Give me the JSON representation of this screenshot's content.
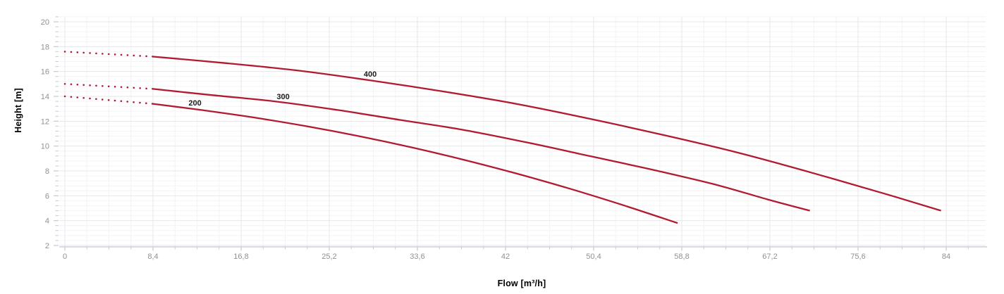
{
  "chart_data": {
    "type": "line",
    "title": "",
    "xlabel": "Flow [m³/h]",
    "ylabel": "Height [m]",
    "x_axis": {
      "ticks": [
        {
          "value": 0,
          "label": "0"
        },
        {
          "value": 8.4,
          "label": "8,4"
        },
        {
          "value": 16.8,
          "label": "16,8"
        },
        {
          "value": 25.2,
          "label": "25,2"
        },
        {
          "value": 33.6,
          "label": "33,6"
        },
        {
          "value": 42,
          "label": "42"
        },
        {
          "value": 50.4,
          "label": "50,4"
        },
        {
          "value": 58.8,
          "label": "58,8"
        },
        {
          "value": 67.2,
          "label": "67,2"
        },
        {
          "value": 75.6,
          "label": "75,6"
        },
        {
          "value": 84,
          "label": "84"
        }
      ],
      "minor_step": 2.1,
      "shown_range": [
        0,
        86.1
      ]
    },
    "y_axis": {
      "ticks": [
        {
          "value": 2,
          "label": "2"
        },
        {
          "value": 4,
          "label": "4"
        },
        {
          "value": 6,
          "label": "6"
        },
        {
          "value": 8,
          "label": "8"
        },
        {
          "value": 10,
          "label": "10"
        },
        {
          "value": 12,
          "label": "12"
        },
        {
          "value": 14,
          "label": "14"
        },
        {
          "value": 16,
          "label": "16"
        },
        {
          "value": 18,
          "label": "18"
        },
        {
          "value": 20,
          "label": "20"
        }
      ],
      "minor_step": 0.4,
      "shown_range": [
        2,
        20.4
      ]
    },
    "series": [
      {
        "name": "200",
        "label": {
          "text": "200",
          "x": 12.4,
          "y": 13.5
        },
        "dotted_points": [
          [
            0,
            14.0
          ],
          [
            8.4,
            13.4
          ]
        ],
        "points": [
          [
            8.4,
            13.4
          ],
          [
            13,
            12.9
          ],
          [
            18,
            12.3
          ],
          [
            23,
            11.6
          ],
          [
            28,
            10.8
          ],
          [
            33,
            9.9
          ],
          [
            38,
            8.9
          ],
          [
            43,
            7.8
          ],
          [
            48,
            6.6
          ],
          [
            53,
            5.3
          ],
          [
            58.4,
            3.8
          ]
        ]
      },
      {
        "name": "300",
        "label": {
          "text": "300",
          "x": 20.8,
          "y": 14.0
        },
        "dotted_points": [
          [
            0,
            15.0
          ],
          [
            8.4,
            14.6
          ]
        ],
        "points": [
          [
            8.4,
            14.6
          ],
          [
            14,
            14.1
          ],
          [
            20,
            13.6
          ],
          [
            26,
            12.9
          ],
          [
            32,
            12.1
          ],
          [
            38,
            11.3
          ],
          [
            44,
            10.3
          ],
          [
            50,
            9.2
          ],
          [
            56,
            8.1
          ],
          [
            62,
            6.9
          ],
          [
            67,
            5.7
          ],
          [
            71,
            4.8
          ]
        ]
      },
      {
        "name": "400",
        "label": {
          "text": "400",
          "x": 29.1,
          "y": 15.8
        },
        "dotted_points": [
          [
            0,
            17.6
          ],
          [
            8.4,
            17.2
          ]
        ],
        "points": [
          [
            8.4,
            17.2
          ],
          [
            15,
            16.7
          ],
          [
            22,
            16.1
          ],
          [
            29,
            15.3
          ],
          [
            36,
            14.4
          ],
          [
            43,
            13.4
          ],
          [
            50,
            12.2
          ],
          [
            57,
            10.9
          ],
          [
            64,
            9.5
          ],
          [
            71,
            7.9
          ],
          [
            78,
            6.2
          ],
          [
            83.5,
            4.8
          ]
        ]
      }
    ],
    "legend": "none",
    "grid": "on",
    "colors": {
      "curve": "#b21a32",
      "grid_major": "#e7e7eb",
      "grid_minor": "#f4f4f7",
      "axis": "#c4cad3",
      "tick": "#c4cad3",
      "tick_label": "#8f9194",
      "curve_label": "#1b1b1b",
      "axis_title": "#000000",
      "background": "#ffffff"
    }
  }
}
